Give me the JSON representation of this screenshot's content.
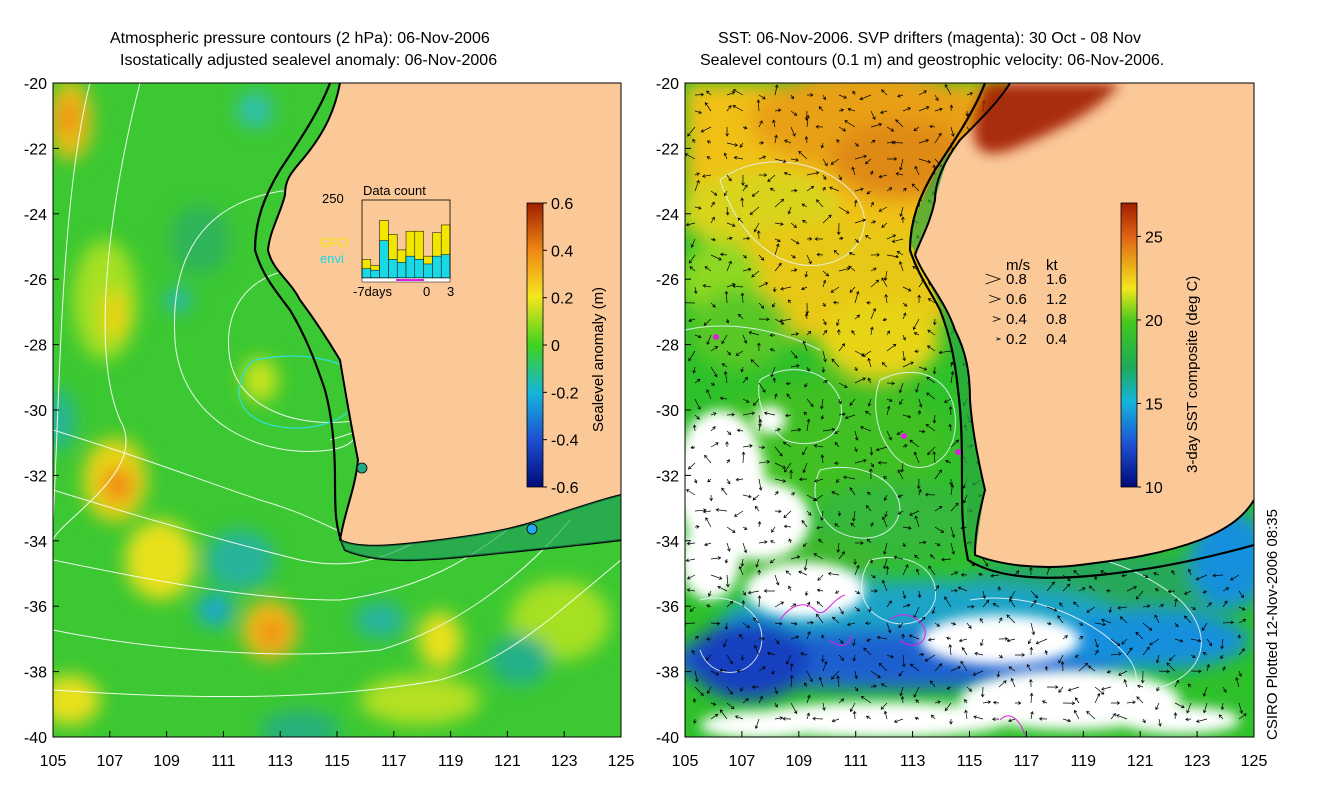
{
  "left_panel": {
    "title_line1": "Atmospheric pressure contours (2 hPa): 06-Nov-2006",
    "title_line2": "Isostatically adjusted sealevel anomaly: 06-Nov-2006",
    "x_ticks": [
      "105",
      "107",
      "109",
      "111",
      "113",
      "115",
      "117",
      "119",
      "121",
      "123",
      "125"
    ],
    "y_ticks": [
      "-20",
      "-22",
      "-24",
      "-26",
      "-28",
      "-30",
      "-32",
      "-34",
      "-36",
      "-38",
      "-40"
    ],
    "colorbar": {
      "label": "Sealevel anomaly (m)",
      "ticks": [
        "0.6",
        "0.4",
        "0.2",
        "0",
        "-0.2",
        "-0.4",
        "-0.6"
      ],
      "range": [
        -0.6,
        0.6
      ]
    },
    "inset": {
      "title": "Data count",
      "y_max_label": "250",
      "legend_gfo": "GFO",
      "legend_envi": "envi",
      "x_label_left": "-7days",
      "x_label_mid": "0",
      "x_label_right": "3",
      "gfo_color": "#f2e600",
      "envi_color": "#19d9e6",
      "gfo_values": [
        60,
        40,
        185,
        140,
        90,
        150,
        150,
        70,
        145,
        170
      ],
      "envi_values": [
        30,
        25,
        120,
        60,
        50,
        70,
        60,
        45,
        70,
        75
      ]
    }
  },
  "right_panel": {
    "title_line1": "SST: 06-Nov-2006. SVP drifters (magenta): 30 Oct - 08 Nov",
    "title_line2": "Sealevel contours (0.1 m) and geostrophic velocity: 06-Nov-2006.",
    "x_ticks": [
      "105",
      "107",
      "109",
      "111",
      "113",
      "115",
      "117",
      "119",
      "121",
      "123",
      "125"
    ],
    "y_ticks": [
      "-20",
      "-22",
      "-24",
      "-26",
      "-28",
      "-30",
      "-32",
      "-34",
      "-36",
      "-38",
      "-40"
    ],
    "colorbar": {
      "label": "3-day SST composite (deg C)",
      "ticks": [
        "25",
        "20",
        "15",
        "10"
      ],
      "range": [
        10,
        27
      ]
    },
    "velocity_legend": {
      "header_ms": "m/s",
      "header_kt": "kt",
      "rows": [
        {
          "ms": "0.8",
          "kt": "1.6"
        },
        {
          "ms": "0.6",
          "kt": "1.2"
        },
        {
          "ms": "0.4",
          "kt": "0.8"
        },
        {
          "ms": "0.2",
          "kt": "0.4"
        }
      ]
    },
    "side_text": "CSIRO Plotted 12-Nov-2006 08:35"
  },
  "colors": {
    "land": "#fbc898",
    "drifter": "#e020e0",
    "coast": "#000000"
  }
}
